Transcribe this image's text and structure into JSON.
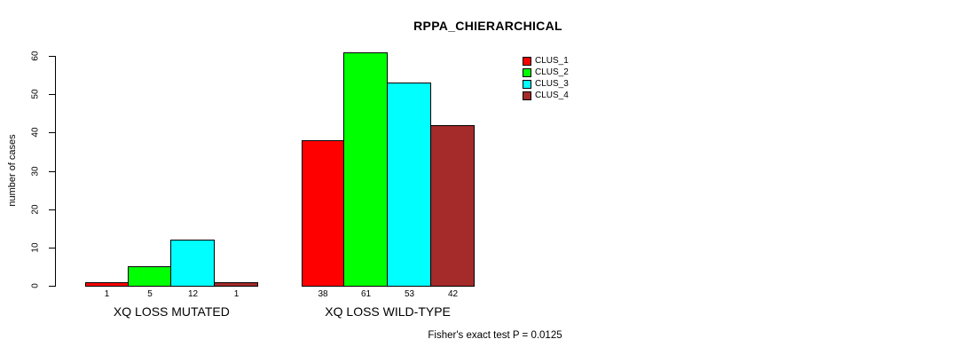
{
  "chart_data": {
    "type": "bar",
    "title": "RPPA_CHIERARCHICAL",
    "ylabel": "number of cases",
    "xlabel": "",
    "categories": [
      "XQ LOSS MUTATED",
      "XQ LOSS WILD-TYPE"
    ],
    "series": [
      {
        "name": "CLUS_1",
        "color": "#FF0000",
        "values": [
          1,
          38
        ]
      },
      {
        "name": "CLUS_2",
        "color": "#00FF00",
        "values": [
          5,
          61
        ]
      },
      {
        "name": "CLUS_3",
        "color": "#00FFFF",
        "values": [
          12,
          53
        ]
      },
      {
        "name": "CLUS_4",
        "color": "#A52A2A",
        "values": [
          1,
          42
        ]
      }
    ],
    "bar_value_labels": [
      [
        1,
        5,
        12,
        1
      ],
      [
        38,
        61,
        53,
        42
      ]
    ],
    "yticks": [
      0,
      10,
      20,
      30,
      40,
      50,
      60
    ],
    "ylim": [
      0,
      60
    ],
    "grid": false,
    "legend_position": "top-right",
    "annotation": "Fisher's exact test P = 0.0125"
  }
}
